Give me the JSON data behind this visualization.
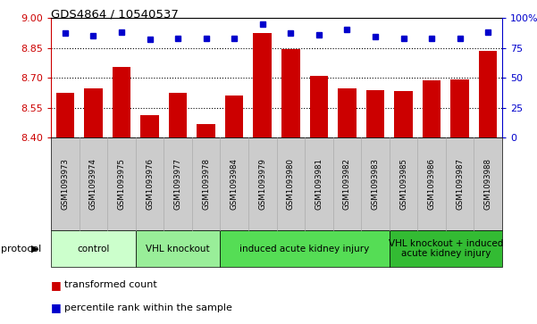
{
  "title": "GDS4864 / 10540537",
  "samples": [
    "GSM1093973",
    "GSM1093974",
    "GSM1093975",
    "GSM1093976",
    "GSM1093977",
    "GSM1093978",
    "GSM1093984",
    "GSM1093979",
    "GSM1093980",
    "GSM1093981",
    "GSM1093982",
    "GSM1093983",
    "GSM1093985",
    "GSM1093986",
    "GSM1093987",
    "GSM1093988"
  ],
  "bar_values": [
    8.625,
    8.645,
    8.755,
    8.515,
    8.625,
    8.47,
    8.61,
    8.925,
    8.845,
    8.71,
    8.645,
    8.64,
    8.635,
    8.685,
    8.69,
    8.835
  ],
  "dot_values": [
    87,
    85,
    88,
    82,
    83,
    83,
    83,
    95,
    87,
    86,
    90,
    84,
    83,
    83,
    83,
    88
  ],
  "ylim_left": [
    8.4,
    9.0
  ],
  "ylim_right": [
    0,
    100
  ],
  "yticks_left": [
    8.4,
    8.55,
    8.7,
    8.85,
    9.0
  ],
  "yticks_right": [
    0,
    25,
    50,
    75,
    100
  ],
  "groups": [
    {
      "label": "control",
      "start": 0,
      "end": 3,
      "color": "#ccffcc"
    },
    {
      "label": "VHL knockout",
      "start": 3,
      "end": 6,
      "color": "#99ee99"
    },
    {
      "label": "induced acute kidney injury",
      "start": 6,
      "end": 12,
      "color": "#55dd55"
    },
    {
      "label": "VHL knockout + induced\nacute kidney injury",
      "start": 12,
      "end": 16,
      "color": "#33bb33"
    }
  ],
  "bar_color": "#cc0000",
  "dot_color": "#0000cc",
  "bg_color": "#ffffff",
  "left_axis_color": "#cc0000",
  "right_axis_color": "#0000cc",
  "tick_bg_color": "#cccccc",
  "legend_items": [
    "transformed count",
    "percentile rank within the sample"
  ],
  "protocol_label": "protocol",
  "dotted_grid": [
    8.55,
    8.7,
    8.85
  ]
}
